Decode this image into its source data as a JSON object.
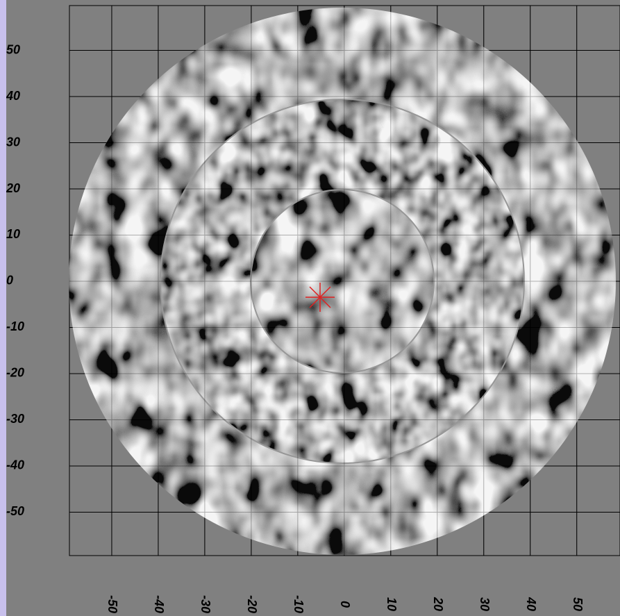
{
  "chart_data": {
    "type": "image",
    "xlim": [
      -59.1,
      59.3
    ],
    "ylim": [
      -59.4,
      59.7
    ],
    "xticks": [
      -50,
      -40,
      -30,
      -20,
      -10,
      0,
      10,
      20,
      30,
      40,
      50
    ],
    "yticks": [
      50,
      40,
      30,
      20,
      10,
      0,
      -10,
      -20,
      -30,
      -40,
      -50
    ],
    "grid": true
  }
}
